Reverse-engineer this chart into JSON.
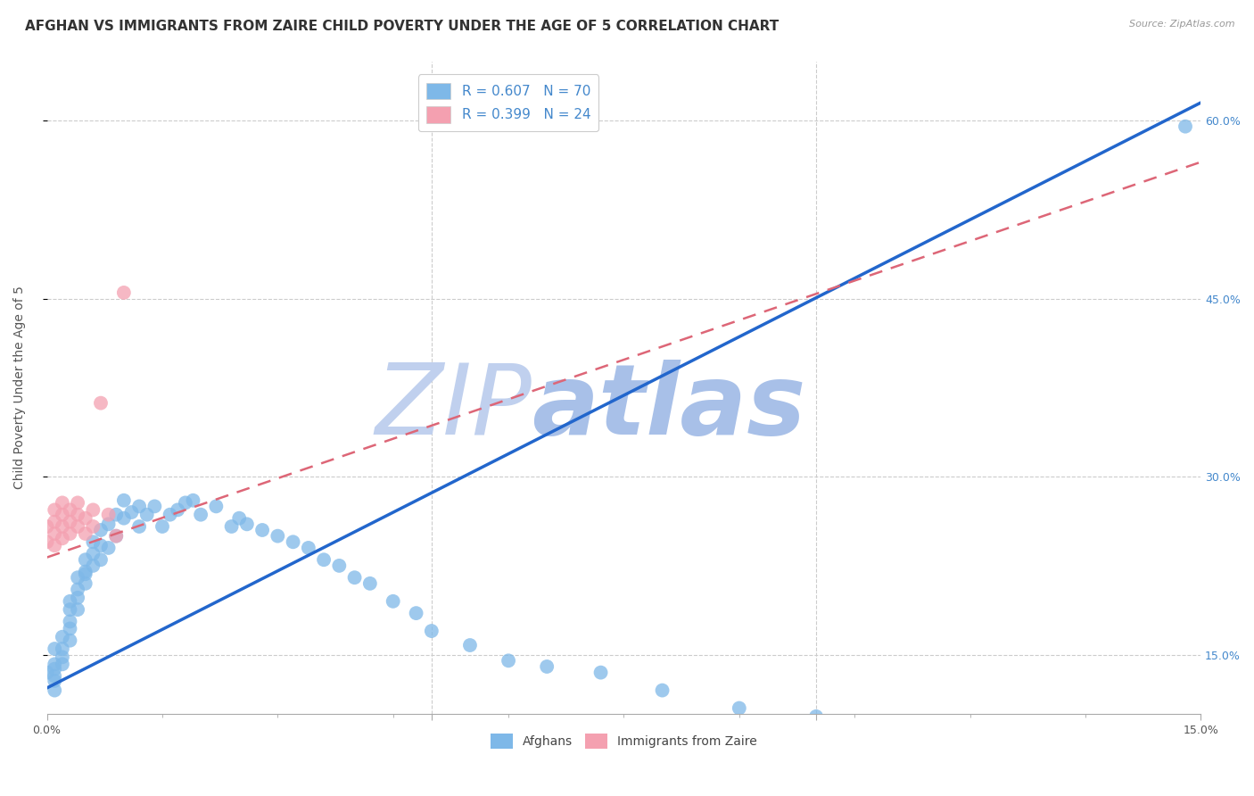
{
  "title": "AFGHAN VS IMMIGRANTS FROM ZAIRE CHILD POVERTY UNDER THE AGE OF 5 CORRELATION CHART",
  "source": "Source: ZipAtlas.com",
  "ylabel": "Child Poverty Under the Age of 5",
  "xlim": [
    0,
    0.15
  ],
  "ylim": [
    0.1,
    0.65
  ],
  "ytick_positions": [
    0.15,
    0.3,
    0.45,
    0.6
  ],
  "ytick_labels": [
    "15.0%",
    "30.0%",
    "45.0%",
    "60.0%"
  ],
  "legend1_label": "R = 0.607   N = 70",
  "legend2_label": "R = 0.399   N = 24",
  "afghan_color": "#7eb8e8",
  "zaire_color": "#f4a0b0",
  "afghan_line_color": "#2266cc",
  "zaire_line_color": "#dd6677",
  "background_color": "#ffffff",
  "watermark_zip_color": "#c0d0ee",
  "watermark_atlas_color": "#a8c0e8",
  "title_fontsize": 11,
  "axis_label_fontsize": 10,
  "tick_fontsize": 9,
  "legend_fontsize": 11,
  "afghan_scatter_x": [
    0.0,
    0.001,
    0.001,
    0.001,
    0.001,
    0.001,
    0.001,
    0.002,
    0.002,
    0.002,
    0.002,
    0.003,
    0.003,
    0.003,
    0.003,
    0.003,
    0.004,
    0.004,
    0.004,
    0.004,
    0.005,
    0.005,
    0.005,
    0.005,
    0.006,
    0.006,
    0.006,
    0.007,
    0.007,
    0.007,
    0.008,
    0.008,
    0.009,
    0.009,
    0.01,
    0.01,
    0.011,
    0.012,
    0.012,
    0.013,
    0.014,
    0.015,
    0.016,
    0.017,
    0.018,
    0.019,
    0.02,
    0.022,
    0.024,
    0.025,
    0.026,
    0.028,
    0.03,
    0.032,
    0.034,
    0.036,
    0.038,
    0.04,
    0.042,
    0.045,
    0.048,
    0.05,
    0.055,
    0.06,
    0.065,
    0.072,
    0.08,
    0.09,
    0.1,
    0.148
  ],
  "afghan_scatter_y": [
    0.135,
    0.128,
    0.142,
    0.132,
    0.12,
    0.155,
    0.138,
    0.148,
    0.142,
    0.165,
    0.155,
    0.162,
    0.172,
    0.188,
    0.178,
    0.195,
    0.188,
    0.205,
    0.215,
    0.198,
    0.21,
    0.22,
    0.23,
    0.218,
    0.225,
    0.235,
    0.245,
    0.23,
    0.242,
    0.255,
    0.24,
    0.26,
    0.25,
    0.268,
    0.265,
    0.28,
    0.27,
    0.258,
    0.275,
    0.268,
    0.275,
    0.258,
    0.268,
    0.272,
    0.278,
    0.28,
    0.268,
    0.275,
    0.258,
    0.265,
    0.26,
    0.255,
    0.25,
    0.245,
    0.24,
    0.23,
    0.225,
    0.215,
    0.21,
    0.195,
    0.185,
    0.17,
    0.158,
    0.145,
    0.14,
    0.135,
    0.12,
    0.105,
    0.098,
    0.595
  ],
  "zaire_scatter_x": [
    0.0,
    0.0,
    0.001,
    0.001,
    0.001,
    0.001,
    0.002,
    0.002,
    0.002,
    0.002,
    0.003,
    0.003,
    0.003,
    0.004,
    0.004,
    0.004,
    0.005,
    0.005,
    0.006,
    0.006,
    0.007,
    0.008,
    0.009,
    0.01
  ],
  "zaire_scatter_y": [
    0.245,
    0.258,
    0.242,
    0.252,
    0.262,
    0.272,
    0.248,
    0.258,
    0.268,
    0.278,
    0.252,
    0.262,
    0.272,
    0.258,
    0.268,
    0.278,
    0.252,
    0.265,
    0.258,
    0.272,
    0.362,
    0.268,
    0.25,
    0.455
  ],
  "afghan_line_x": [
    0.0,
    0.15
  ],
  "afghan_line_y": [
    0.122,
    0.615
  ],
  "zaire_line_x": [
    0.0,
    0.15
  ],
  "zaire_line_y": [
    0.232,
    0.565
  ],
  "grid_color": "#cccccc",
  "right_tick_color": "#4488cc"
}
